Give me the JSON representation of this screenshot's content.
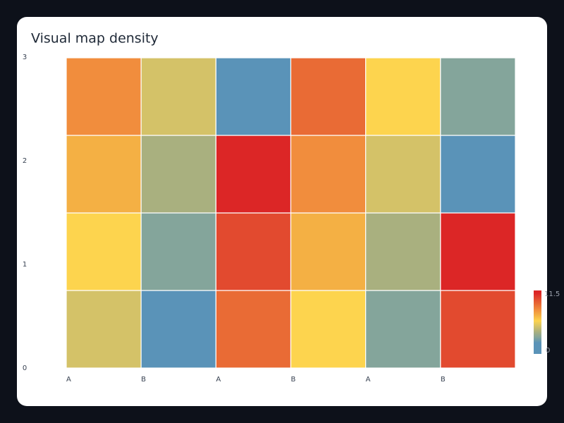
{
  "chart_data": {
    "type": "heatmap",
    "title": "Visual map density",
    "categories": [
      "A",
      "B",
      "A",
      "B",
      "A",
      "B"
    ],
    "ylim": [
      0,
      3
    ],
    "yticks": [
      0,
      1,
      2,
      3
    ],
    "values": [
      [
        5,
        2,
        9,
        6,
        3,
        10
      ],
      [
        6,
        3,
        10,
        7,
        4,
        11
      ],
      [
        7,
        4,
        11,
        8,
        5,
        2
      ],
      [
        8,
        5,
        2,
        9,
        6,
        3
      ]
    ],
    "visual_map": {
      "min": 0,
      "max": 11.5
    },
    "colorscale": [
      [
        2,
        "#5a93b8"
      ],
      [
        3,
        "#84a59b"
      ],
      [
        4,
        "#a9b07f"
      ],
      [
        5,
        "#d4c268"
      ],
      [
        6,
        "#fdd44e"
      ],
      [
        7,
        "#f4b044"
      ],
      [
        8,
        "#f18d3d"
      ],
      [
        9,
        "#e96b35"
      ],
      [
        10,
        "#e24a2f"
      ],
      [
        11,
        "#dc2626"
      ]
    ]
  }
}
